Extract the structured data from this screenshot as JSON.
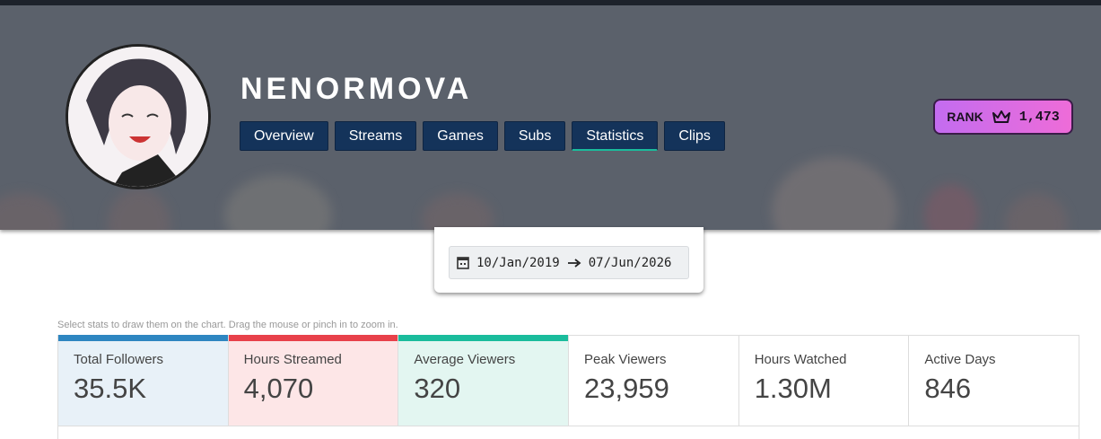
{
  "profile": {
    "name": "NENORMOVA",
    "rank_label": "RANK",
    "rank": "1,473"
  },
  "tabs": [
    "Overview",
    "Streams",
    "Games",
    "Subs",
    "Statistics",
    "Clips"
  ],
  "active_tab": 4,
  "date_range": {
    "start": "10/Jan/2019",
    "end": "07/Jun/2026"
  },
  "hint": "Select stats to draw them on the chart. Drag the mouse or pinch in to zoom in.",
  "stats": [
    {
      "label": "Total Followers",
      "value": "35.5K"
    },
    {
      "label": "Hours Streamed",
      "value": "4,070"
    },
    {
      "label": "Average Viewers",
      "value": "320"
    },
    {
      "label": "Peak Viewers",
      "value": "23,959"
    },
    {
      "label": "Hours Watched",
      "value": "1.30M"
    },
    {
      "label": "Active Days",
      "value": "846"
    }
  ]
}
